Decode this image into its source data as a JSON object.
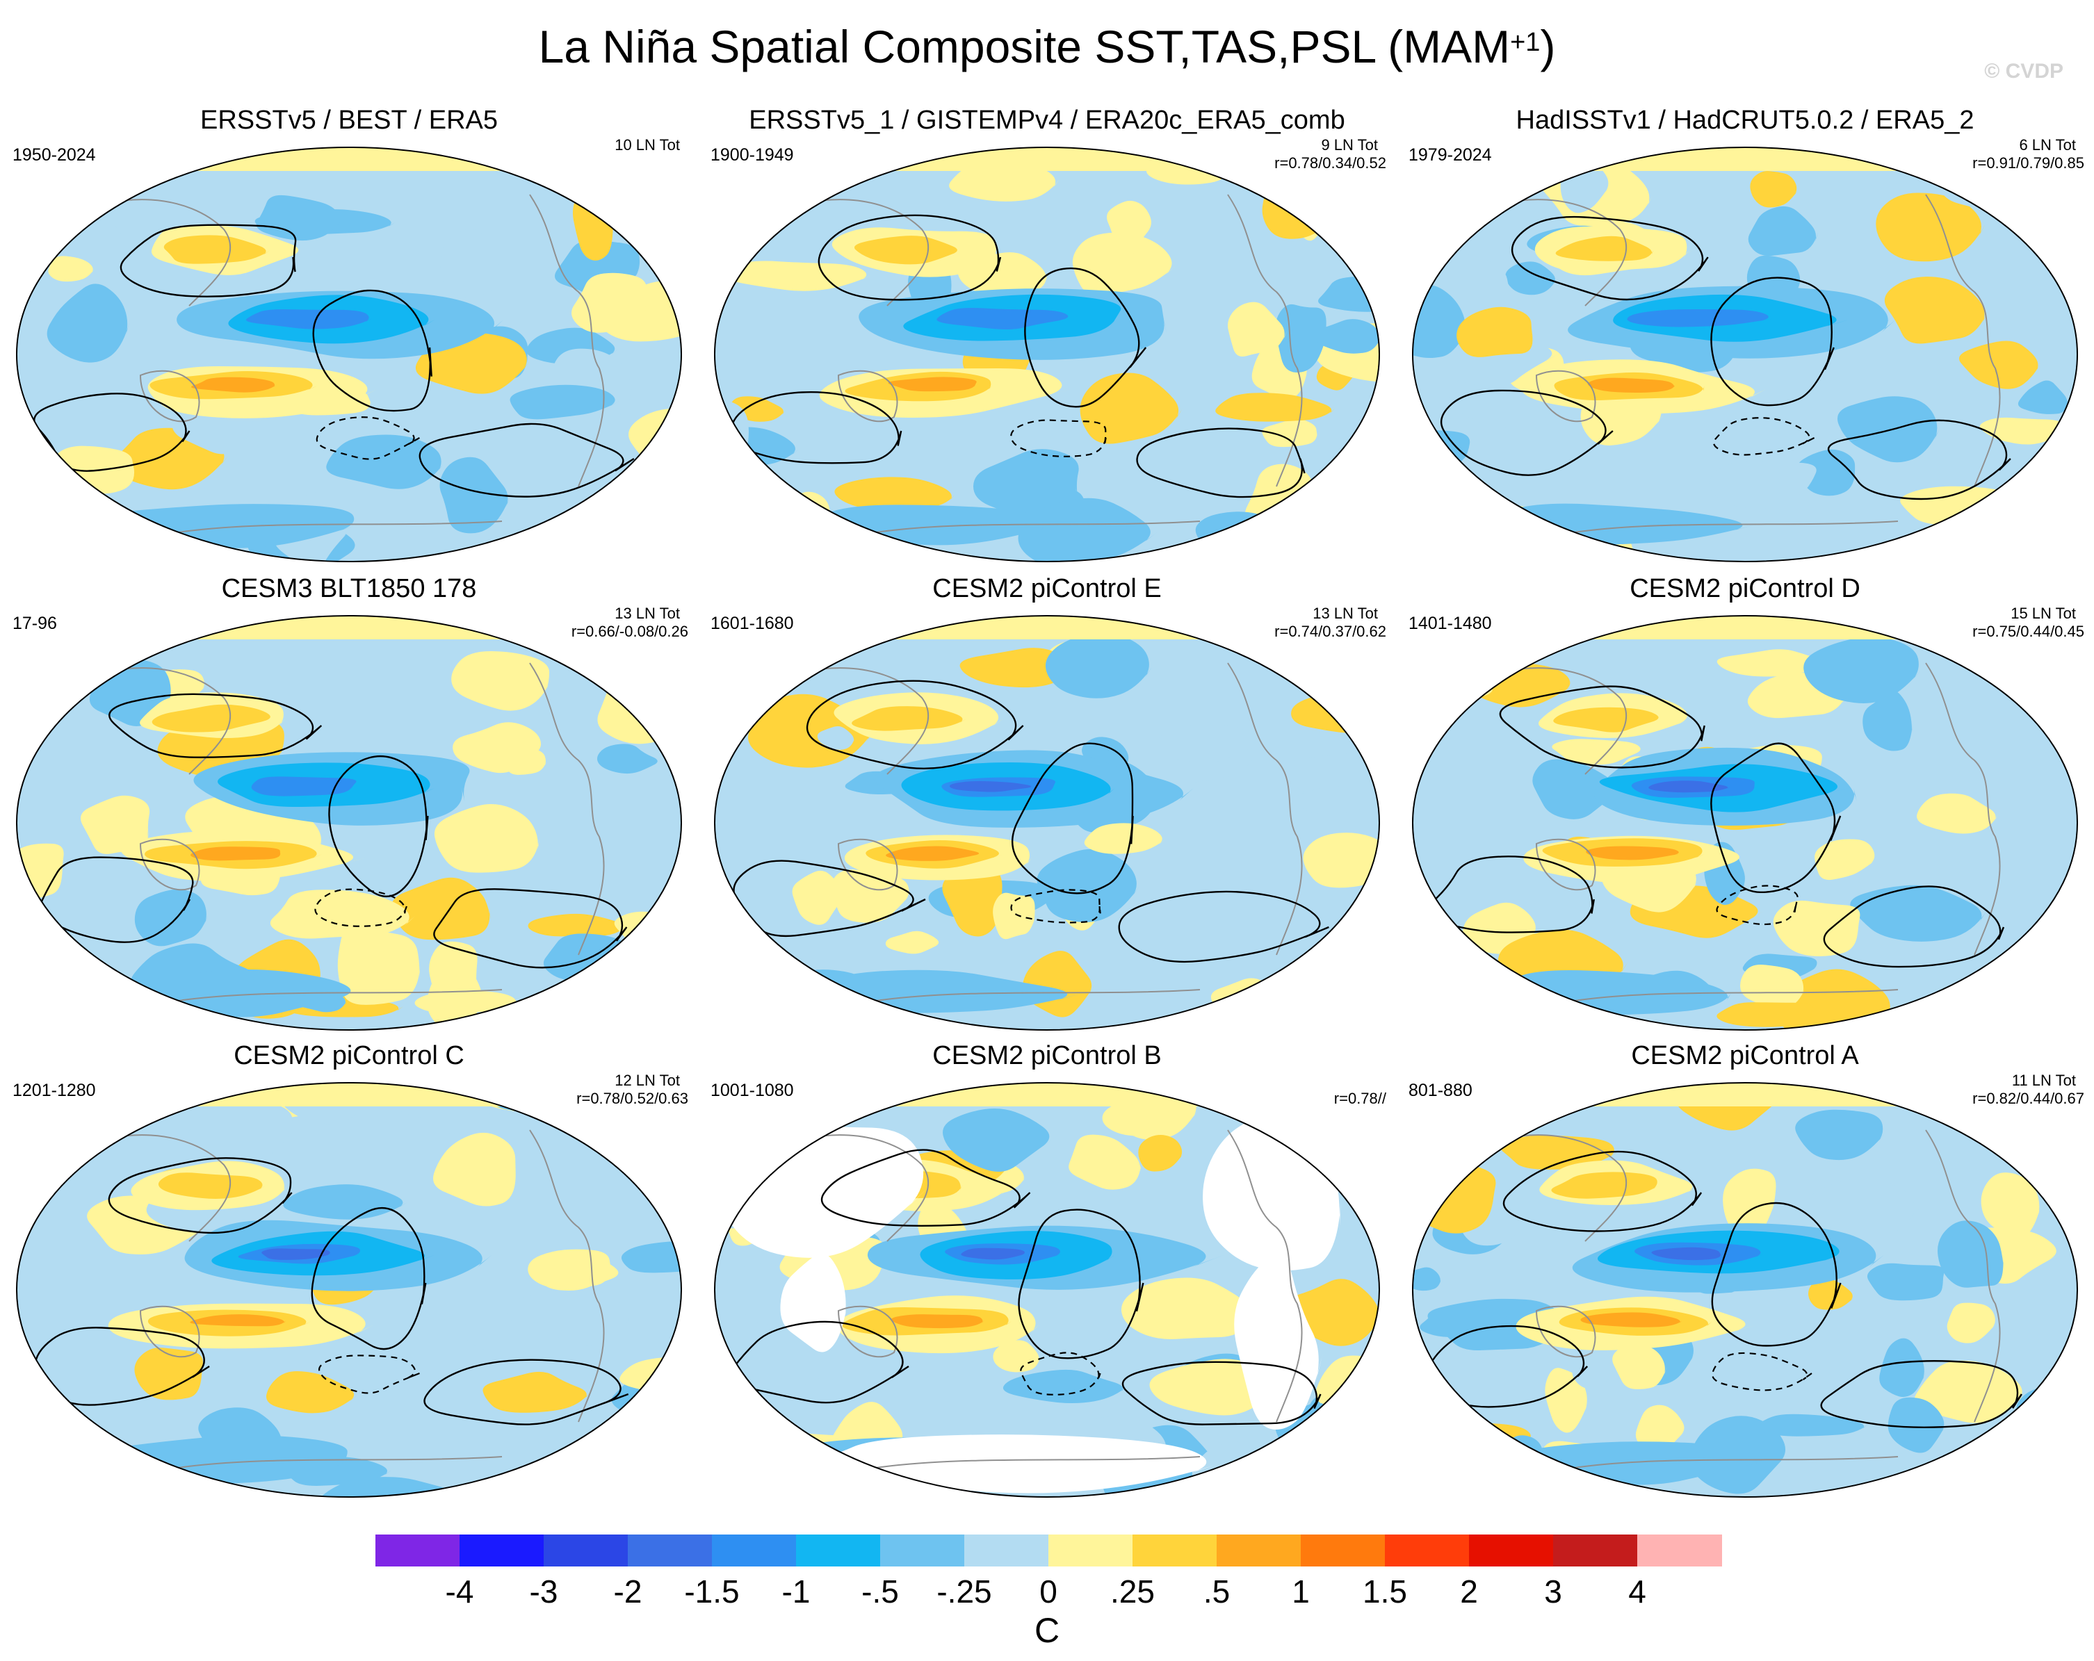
{
  "title": {
    "main": "La Niña Spatial Composite SST,TAS,PSL (MAM",
    "superscript": "+1",
    "close": ")"
  },
  "watermark": "© CVDP",
  "panels": [
    {
      "title": "ERSSTv5 / BEST / ERA5",
      "years": "1950-2024",
      "count": "10 LN Tot",
      "corr": "",
      "land_masked": false
    },
    {
      "title": "ERSSTv5_1 / GISTEMPv4 / ERA20c_ERA5_comb",
      "years": "1900-1949",
      "count": "9 LN Tot",
      "corr": "r=0.78/0.34/0.52",
      "land_masked": false
    },
    {
      "title": "HadISSTv1 / HadCRUT5.0.2 / ERA5_2",
      "years": "1979-2024",
      "count": "6 LN Tot",
      "corr": "r=0.91/0.79/0.85",
      "land_masked": false
    },
    {
      "title": "CESM3 BLT1850 178",
      "years": "17-96",
      "count": "13 LN Tot",
      "corr": "r=0.66/-0.08/0.26",
      "land_masked": false
    },
    {
      "title": "CESM2 piControl E",
      "years": "1601-1680",
      "count": "13 LN Tot",
      "corr": "r=0.74/0.37/0.62",
      "land_masked": false
    },
    {
      "title": "CESM2 piControl D",
      "years": "1401-1480",
      "count": "15 LN Tot",
      "corr": "r=0.75/0.44/0.45",
      "land_masked": false
    },
    {
      "title": "CESM2 piControl C",
      "years": "1201-1280",
      "count": "12 LN Tot",
      "corr": "r=0.78/0.52/0.63",
      "land_masked": false
    },
    {
      "title": "CESM2 piControl B",
      "years": "1001-1080",
      "count": "",
      "corr": "r=0.78//",
      "land_masked": true
    },
    {
      "title": "CESM2 piControl A",
      "years": "801-880",
      "count": "11 LN Tot",
      "corr": "r=0.82/0.44/0.67",
      "land_masked": false
    }
  ],
  "colorbar": {
    "unit": "C",
    "labels": [
      "-4",
      "-3",
      "-2",
      "-1.5",
      "-1",
      "-.5",
      "-.25",
      "0",
      ".25",
      ".5",
      "1",
      "1.5",
      "2",
      "3",
      "4"
    ],
    "colors": [
      "#7f26e6",
      "#1a1aff",
      "#2b46e6",
      "#3b70e6",
      "#2e8ff2",
      "#12b6f2",
      "#6ec3f0",
      "#b3dcf2",
      "#fff59a",
      "#ffd43b",
      "#ffa81f",
      "#ff7a0d",
      "#ff3d0a",
      "#e61000",
      "#c41c1c",
      "#ffb3b3"
    ]
  },
  "palette": {
    "ocean_neutral": "#b3dcf2",
    "cold_light": "#6ec3f0",
    "cold_mid": "#12b6f2",
    "cold_strong": "#2e8ff2",
    "cold_extreme": "#3b70e6",
    "warm_light": "#fff59a",
    "warm_mid": "#ffd43b",
    "warm_strong": "#ffa81f"
  }
}
